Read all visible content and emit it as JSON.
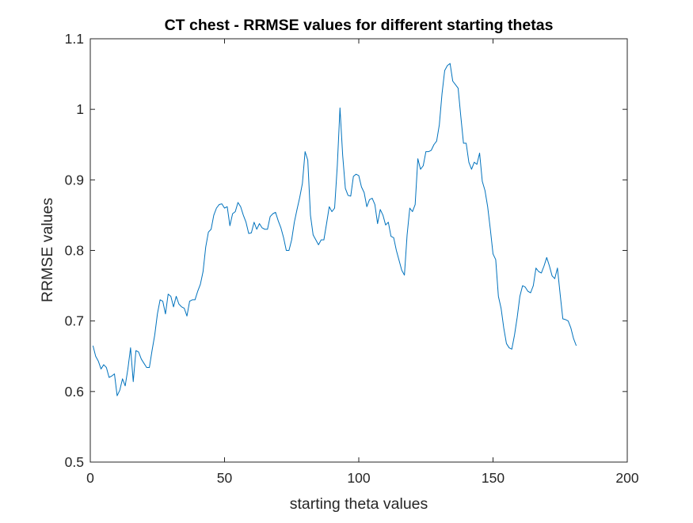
{
  "chart_data": {
    "type": "line",
    "title": "CT chest - RRMSE values for different starting thetas",
    "xlabel": "starting theta values",
    "ylabel": "RRMSE values",
    "xlim": [
      0,
      200
    ],
    "ylim": [
      0.5,
      1.1
    ],
    "xticks": [
      "0",
      "50",
      "100",
      "150",
      "200"
    ],
    "yticks": [
      "0.5",
      "0.6",
      "0.7",
      "0.8",
      "0.9",
      "1",
      "1.1"
    ],
    "grid": false,
    "legend": "none",
    "series": [
      {
        "color": "#0072BD",
        "x": [
          1,
          2,
          3,
          4,
          5,
          6,
          7,
          8,
          9,
          10,
          11,
          12,
          13,
          14,
          15,
          16,
          17,
          18,
          19,
          20,
          21,
          22,
          23,
          24,
          25,
          26,
          27,
          28,
          29,
          30,
          31,
          32,
          33,
          34,
          35,
          36,
          37,
          38,
          39,
          40,
          41,
          42,
          43,
          44,
          45,
          46,
          47,
          48,
          49,
          50,
          51,
          52,
          53,
          54,
          55,
          56,
          57,
          58,
          59,
          60,
          61,
          62,
          63,
          64,
          65,
          66,
          67,
          68,
          69,
          70,
          71,
          72,
          73,
          74,
          75,
          76,
          77,
          78,
          79,
          80,
          81,
          82,
          83,
          84,
          85,
          86,
          87,
          88,
          89,
          90,
          91,
          92,
          93,
          94,
          95,
          96,
          97,
          98,
          99,
          100,
          101,
          102,
          103,
          104,
          105,
          106,
          107,
          108,
          109,
          110,
          111,
          112,
          113,
          114,
          115,
          116,
          117,
          118,
          119,
          120,
          121,
          122,
          123,
          124,
          125,
          126,
          127,
          128,
          129,
          130,
          131,
          132,
          133,
          134,
          135,
          136,
          137,
          138,
          139,
          140,
          141,
          142,
          143,
          144,
          145,
          146,
          147,
          148,
          149,
          150,
          151,
          152,
          153,
          154,
          155,
          156,
          157,
          158,
          159,
          160,
          161,
          162,
          163,
          164,
          165,
          166,
          167,
          168,
          169,
          170,
          171,
          172,
          173,
          174,
          175,
          176,
          177,
          178,
          179,
          180,
          181
        ],
        "y": [
          0.665,
          0.65,
          0.643,
          0.632,
          0.638,
          0.634,
          0.62,
          0.622,
          0.625,
          0.594,
          0.602,
          0.618,
          0.608,
          0.632,
          0.662,
          0.614,
          0.658,
          0.656,
          0.646,
          0.64,
          0.634,
          0.634,
          0.658,
          0.68,
          0.71,
          0.73,
          0.728,
          0.71,
          0.738,
          0.735,
          0.72,
          0.735,
          0.724,
          0.72,
          0.718,
          0.707,
          0.728,
          0.73,
          0.73,
          0.742,
          0.752,
          0.77,
          0.805,
          0.826,
          0.83,
          0.85,
          0.86,
          0.865,
          0.866,
          0.86,
          0.862,
          0.835,
          0.852,
          0.855,
          0.868,
          0.862,
          0.85,
          0.84,
          0.824,
          0.825,
          0.84,
          0.83,
          0.838,
          0.832,
          0.83,
          0.83,
          0.848,
          0.852,
          0.854,
          0.842,
          0.832,
          0.818,
          0.8,
          0.8,
          0.815,
          0.84,
          0.858,
          0.875,
          0.895,
          0.94,
          0.928,
          0.85,
          0.822,
          0.815,
          0.808,
          0.815,
          0.815,
          0.838,
          0.862,
          0.855,
          0.86,
          0.92,
          1.002,
          0.935,
          0.888,
          0.878,
          0.877,
          0.905,
          0.908,
          0.906,
          0.89,
          0.882,
          0.862,
          0.872,
          0.874,
          0.865,
          0.838,
          0.858,
          0.85,
          0.836,
          0.84,
          0.82,
          0.818,
          0.8,
          0.786,
          0.772,
          0.765,
          0.822,
          0.86,
          0.855,
          0.865,
          0.93,
          0.915,
          0.92,
          0.94,
          0.94,
          0.942,
          0.95,
          0.955,
          0.978,
          1.022,
          1.055,
          1.062,
          1.065,
          1.04,
          1.035,
          1.03,
          0.99,
          0.952,
          0.952,
          0.925,
          0.915,
          0.925,
          0.922,
          0.938,
          0.898,
          0.885,
          0.862,
          0.83,
          0.795,
          0.787,
          0.735,
          0.718,
          0.69,
          0.668,
          0.662,
          0.66,
          0.68,
          0.705,
          0.735,
          0.75,
          0.748,
          0.742,
          0.74,
          0.75,
          0.775,
          0.77,
          0.768,
          0.778,
          0.79,
          0.778,
          0.764,
          0.76,
          0.775,
          0.738,
          0.703,
          0.702,
          0.7,
          0.69,
          0.675,
          0.665
        ]
      }
    ]
  }
}
